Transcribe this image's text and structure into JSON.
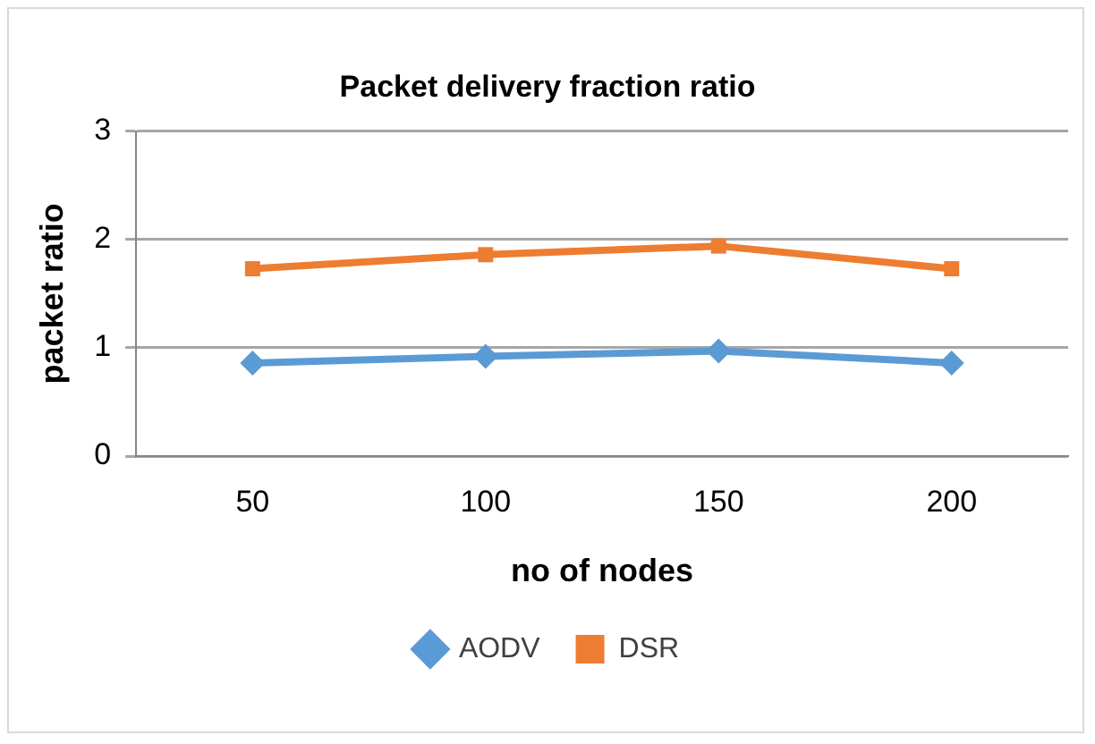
{
  "chart_data": {
    "type": "line",
    "title": "Packet delivery fraction ratio",
    "xlabel": "no of nodes",
    "ylabel": "packet ratio",
    "categories": [
      "50",
      "100",
      "150",
      "200"
    ],
    "series": [
      {
        "name": "AODV",
        "color": "#5b9bd5",
        "values": [
          0.86,
          0.92,
          0.97,
          0.86
        ],
        "marker": "diamond"
      },
      {
        "name": "DSR",
        "color": "#ed7d31",
        "values": [
          1.73,
          1.86,
          1.94,
          1.73
        ],
        "marker": "square"
      }
    ],
    "ylim": [
      0,
      3
    ],
    "yticks": [
      0,
      1,
      2,
      3
    ],
    "grid": "y",
    "legend": "bottom"
  }
}
